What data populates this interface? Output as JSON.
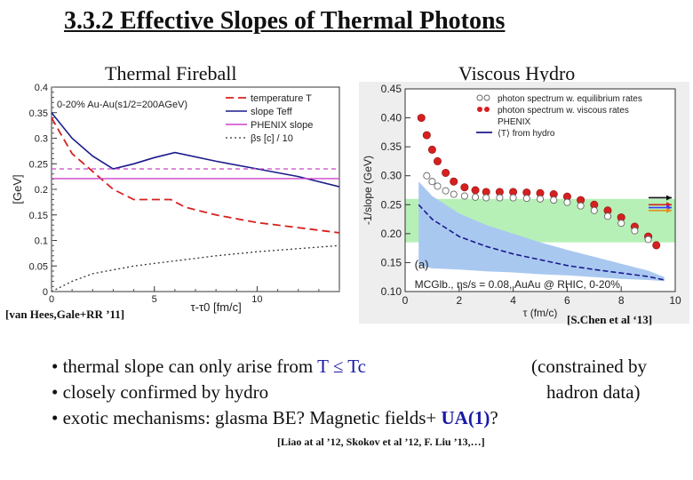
{
  "title": "3.3.2 Effective Slopes of Thermal Photons",
  "left_panel_title": "Thermal Fireball",
  "right_panel_title": "Viscous Hydro",
  "left_citation": "[van Hees,Gale+RR ’11]",
  "right_citation": "[S.Chen et al ‘13]",
  "bullets": {
    "b1_text": "• thermal slope can only arise from ",
    "b1_cond": "T ≤ Tc",
    "b1_right": "(constrained by",
    "b2_text": "• closely confirmed by hydro",
    "b2_right": "hadron data)",
    "b3_text": "• exotic mechanisms: glasma BE? Magnetic fields+ ",
    "b3_ua": "UA(1)",
    "b3_end": "?"
  },
  "references": "[Liao at al ’12, Skokov et al ’12, F. Liu ’13,…]",
  "colors": {
    "blue_text": "#1a1aa6",
    "red": "#d62020",
    "navy": "#1a1a8c",
    "magenta": "#cc44cc",
    "band_green": "#b6f0b6",
    "band_blue": "#a9c8f0"
  },
  "chart_data": [
    {
      "type": "line",
      "xlabel": "τ-τ0 [fm/c]",
      "ylabel": "[GeV]",
      "xlim": [
        0,
        14
      ],
      "ylim": [
        0,
        0.4
      ],
      "x_ticks": [
        "0",
        "5",
        "10"
      ],
      "y_ticks": [
        "0",
        "0.05",
        "0.1",
        "0.15",
        "0.2",
        "0.25",
        "0.3",
        "0.35",
        "0.4"
      ],
      "annotation": "0-20% Au-Au(s1/2=200AGeV)",
      "legend": [
        "temperature T",
        "slope Teff",
        "PHENIX slope",
        "βs [c] / 10"
      ],
      "series": [
        {
          "name": "temperature T",
          "x": [
            0,
            1,
            2,
            3,
            4,
            5,
            5.8,
            6.5,
            8,
            10,
            12,
            14
          ],
          "y": [
            0.34,
            0.27,
            0.235,
            0.2,
            0.18,
            0.18,
            0.18,
            0.165,
            0.15,
            0.135,
            0.125,
            0.115
          ]
        },
        {
          "name": "slope Teff",
          "x": [
            0,
            1,
            2,
            3,
            4,
            5,
            6,
            8,
            10,
            12,
            14
          ],
          "y": [
            0.35,
            0.3,
            0.265,
            0.24,
            0.25,
            0.262,
            0.272,
            0.255,
            0.24,
            0.225,
            0.205
          ]
        },
        {
          "name": "PHENIX slope",
          "x": [
            0,
            14
          ],
          "y": [
            0.221,
            0.221
          ]
        },
        {
          "name": "PHENIX slope band",
          "x": [
            0,
            14
          ],
          "y": [
            0.24,
            0.24
          ]
        },
        {
          "name": "βs [c] / 10",
          "x": [
            0,
            1,
            2,
            4,
            6,
            8,
            10,
            12,
            14
          ],
          "y": [
            0.0,
            0.02,
            0.035,
            0.05,
            0.06,
            0.07,
            0.078,
            0.084,
            0.09
          ]
        }
      ]
    },
    {
      "type": "scatter",
      "xlabel": "τ (fm/c)",
      "ylabel": "-1/slope (GeV)",
      "xlim": [
        0,
        10
      ],
      "ylim": [
        0.1,
        0.45
      ],
      "x_ticks": [
        "0",
        "2",
        "4",
        "6",
        "8",
        "10"
      ],
      "y_ticks": [
        "0.10",
        "0.15",
        "0.20",
        "0.25",
        "0.30",
        "0.35",
        "0.40",
        "0.45"
      ],
      "legend": [
        "photon spectrum w. equilibrium rates",
        "photon spectrum w. viscous rates",
        "PHENIX",
        "⟨T⟩ from hydro"
      ],
      "panel_label": "(a)",
      "annotation": "MCGlb., ηs/s = 0.08, AuAu @ RHIC, 0-20%",
      "phenix_band": [
        0.185,
        0.26
      ],
      "series": [
        {
          "name": "photon spectrum w. viscous rates",
          "x": [
            0.6,
            0.8,
            1.0,
            1.2,
            1.5,
            1.8,
            2.2,
            2.6,
            3.0,
            3.5,
            4.0,
            4.5,
            5.0,
            5.5,
            6.0,
            6.5,
            7.0,
            7.5,
            8.0,
            8.5,
            9.0,
            9.3
          ],
          "y": [
            0.4,
            0.37,
            0.345,
            0.325,
            0.305,
            0.29,
            0.28,
            0.275,
            0.272,
            0.272,
            0.272,
            0.271,
            0.27,
            0.268,
            0.264,
            0.258,
            0.25,
            0.24,
            0.228,
            0.212,
            0.195,
            0.18
          ]
        },
        {
          "name": "photon spectrum w. equilibrium rates",
          "x": [
            0.8,
            1.0,
            1.2,
            1.5,
            1.8,
            2.2,
            2.6,
            3.0,
            3.5,
            4.0,
            4.5,
            5.0,
            5.5,
            6.0,
            6.5,
            7.0,
            7.5,
            8.0,
            8.5,
            9.0
          ],
          "y": [
            0.3,
            0.29,
            0.282,
            0.274,
            0.268,
            0.265,
            0.263,
            0.262,
            0.262,
            0.262,
            0.261,
            0.26,
            0.258,
            0.254,
            0.248,
            0.24,
            0.23,
            0.218,
            0.205,
            0.19
          ]
        },
        {
          "name": "⟨T⟩ from hydro",
          "x": [
            0.5,
            1,
            2,
            3,
            4,
            5,
            6,
            7,
            8,
            9,
            9.6
          ],
          "y": [
            0.25,
            0.225,
            0.195,
            0.178,
            0.165,
            0.155,
            0.145,
            0.138,
            0.132,
            0.126,
            0.12
          ]
        }
      ]
    }
  ]
}
